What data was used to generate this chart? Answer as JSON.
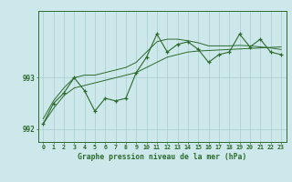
{
  "x": [
    0,
    1,
    2,
    3,
    4,
    5,
    6,
    7,
    8,
    9,
    10,
    11,
    12,
    13,
    14,
    15,
    16,
    17,
    18,
    19,
    20,
    21,
    22,
    23
  ],
  "y_main": [
    992.1,
    992.5,
    992.7,
    993.0,
    992.75,
    992.35,
    992.6,
    992.55,
    992.6,
    993.1,
    993.4,
    993.85,
    993.5,
    993.65,
    993.7,
    993.55,
    993.3,
    993.45,
    993.5,
    993.85,
    993.6,
    993.75,
    993.5,
    993.45
  ],
  "y_smooth_low": [
    992.1,
    992.4,
    992.65,
    992.8,
    992.85,
    992.9,
    992.95,
    993.0,
    993.05,
    993.1,
    993.2,
    993.3,
    993.4,
    993.45,
    993.5,
    993.52,
    993.53,
    993.54,
    993.55,
    993.56,
    993.57,
    993.58,
    993.59,
    993.6
  ],
  "y_smooth_high": [
    992.2,
    992.55,
    992.8,
    993.0,
    993.05,
    993.05,
    993.1,
    993.15,
    993.2,
    993.3,
    993.5,
    993.7,
    993.75,
    993.75,
    993.72,
    993.68,
    993.62,
    993.62,
    993.62,
    993.63,
    993.62,
    993.6,
    993.58,
    993.55
  ],
  "line_color": "#2d6a2d",
  "bg_color": "#cce8ea",
  "grid_color": "#aacdd0",
  "ylabel_ticks": [
    992,
    993
  ],
  "xlabel": "Graphe pression niveau de la mer (hPa)",
  "xlim": [
    -0.5,
    23.5
  ],
  "ylim": [
    991.75,
    994.3
  ],
  "title": ""
}
